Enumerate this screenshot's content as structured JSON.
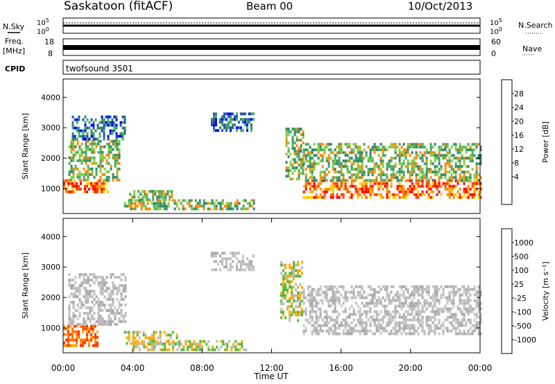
{
  "header": {
    "station": "Saskatoon (fitACF)",
    "beam": "Beam 00",
    "date": "10/Oct/2013"
  },
  "panels": {
    "nsky_label": "N.Sky",
    "nsearch_label": "N.Search",
    "nsearch_ticks": {
      "top": "10^5",
      "bottom": "10^0"
    },
    "nsky_ticks": {
      "top": "10^5",
      "bottom": "10^0"
    },
    "freq_label": "Freq.",
    "freq_unit": "[MHz]",
    "freq_ticks": [
      "18",
      "8"
    ],
    "nave_label": "Nave",
    "nave_ticks": [
      "60",
      "0"
    ],
    "cpid_label": "CPID",
    "cpid_value": "twofsound 3501"
  },
  "colorbars": {
    "power": {
      "label": "Power [dB]",
      "ticks": [
        "28",
        "24",
        "20",
        "16",
        "12",
        "8",
        "4"
      ],
      "colors": [
        "#ff0000",
        "#ff4400",
        "#ff8800",
        "#ffcc00",
        "#88cc44",
        "#44aa66",
        "#338866",
        "#2255aa",
        "#0000ff"
      ]
    },
    "velocity": {
      "label": "Velocity [m s⁻¹]",
      "ticks": [
        "1000",
        "500",
        "100",
        "25",
        "-25",
        "-100",
        "-500",
        "-1000"
      ],
      "colors": [
        "#3344bb",
        "#336699",
        "#338866",
        "#55bb33",
        "#bbbbbb",
        "#ffaa00",
        "#ff7700",
        "#ff3300",
        "#ee0000"
      ]
    }
  },
  "chart_data": [
    {
      "type": "heatmap",
      "name": "power",
      "xlabel": "",
      "ylabel": "Slant Range [km]",
      "xlim": [
        0,
        24
      ],
      "ylim": [
        180,
        4600
      ],
      "yticks": [
        "1000",
        "2000",
        "3000",
        "4000"
      ],
      "echo_regions": [
        {
          "t0": 0.0,
          "t1": 2.6,
          "r0": 900,
          "r1": 1300,
          "level": "high"
        },
        {
          "t0": 0.3,
          "t1": 3.2,
          "r0": 1300,
          "r1": 2600,
          "level": "mid"
        },
        {
          "t0": 0.5,
          "t1": 3.5,
          "r0": 2600,
          "r1": 3400,
          "level": "low"
        },
        {
          "t0": 3.8,
          "t1": 6.3,
          "r0": 650,
          "r1": 950,
          "level": "mid"
        },
        {
          "t0": 3.5,
          "t1": 11.0,
          "r0": 300,
          "r1": 650,
          "level": "mid"
        },
        {
          "t0": 8.5,
          "t1": 11.0,
          "r0": 2900,
          "r1": 3500,
          "level": "low"
        },
        {
          "t0": 12.8,
          "t1": 13.8,
          "r0": 1300,
          "r1": 3000,
          "level": "mid"
        },
        {
          "t0": 13.8,
          "t1": 24.0,
          "r0": 700,
          "r1": 1300,
          "level": "high"
        },
        {
          "t0": 13.8,
          "t1": 24.0,
          "r0": 1300,
          "r1": 2500,
          "level": "mid"
        }
      ]
    },
    {
      "type": "heatmap",
      "name": "velocity",
      "xlabel": "Time UT",
      "ylabel": "Slant Range [km]",
      "xlim": [
        0,
        24
      ],
      "ylim": [
        180,
        4600
      ],
      "xticks": [
        "00:00",
        "04:00",
        "08:00",
        "12:00",
        "16:00",
        "20:00",
        "00:00"
      ],
      "yticks": [
        "1000",
        "2000",
        "3000",
        "4000"
      ],
      "echo_regions": [
        {
          "t0": 0.0,
          "t1": 2.0,
          "r0": 400,
          "r1": 1100,
          "level": "neg"
        },
        {
          "t0": 0.3,
          "t1": 3.6,
          "r0": 1100,
          "r1": 2800,
          "level": "zero"
        },
        {
          "t0": 3.5,
          "t1": 6.5,
          "r0": 500,
          "r1": 900,
          "level": "negsmall"
        },
        {
          "t0": 4.0,
          "t1": 10.5,
          "r0": 300,
          "r1": 600,
          "level": "negsmall"
        },
        {
          "t0": 8.5,
          "t1": 11.0,
          "r0": 2900,
          "r1": 3500,
          "level": "zero"
        },
        {
          "t0": 12.5,
          "t1": 13.8,
          "r0": 1200,
          "r1": 3200,
          "level": "negsmall"
        },
        {
          "t0": 13.8,
          "t1": 24.0,
          "r0": 800,
          "r1": 2400,
          "level": "zero"
        }
      ]
    }
  ]
}
